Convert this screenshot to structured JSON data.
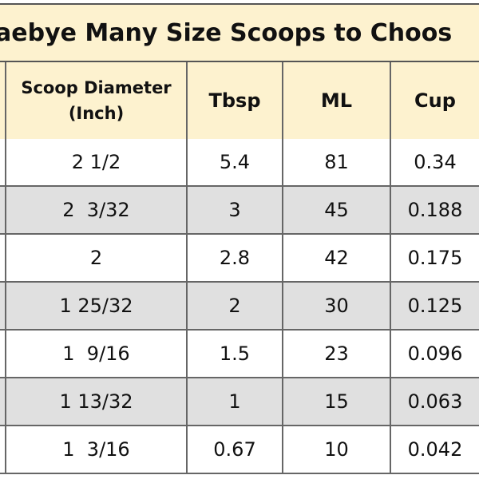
{
  "title": "aebye Many Size Scoops to Choos",
  "table": {
    "header": [
      [
        "Scoop Diameter",
        "(Inch)"
      ],
      "Tbsp",
      "ML",
      "Cup"
    ],
    "rows": [
      [
        "2 1/2",
        "5.4",
        "81",
        "0.34"
      ],
      [
        "2  3/32",
        "3",
        "45",
        "0.188"
      ],
      [
        "2",
        "2.8",
        "42",
        "0.175"
      ],
      [
        "1 25/32",
        "2",
        "30",
        "0.125"
      ],
      [
        "1  9/16",
        "1.5",
        "23",
        "0.096"
      ],
      [
        "1 13/32",
        "1",
        "15",
        "0.063"
      ],
      [
        "1  3/16",
        "0.67",
        "10",
        "0.042"
      ]
    ]
  }
}
